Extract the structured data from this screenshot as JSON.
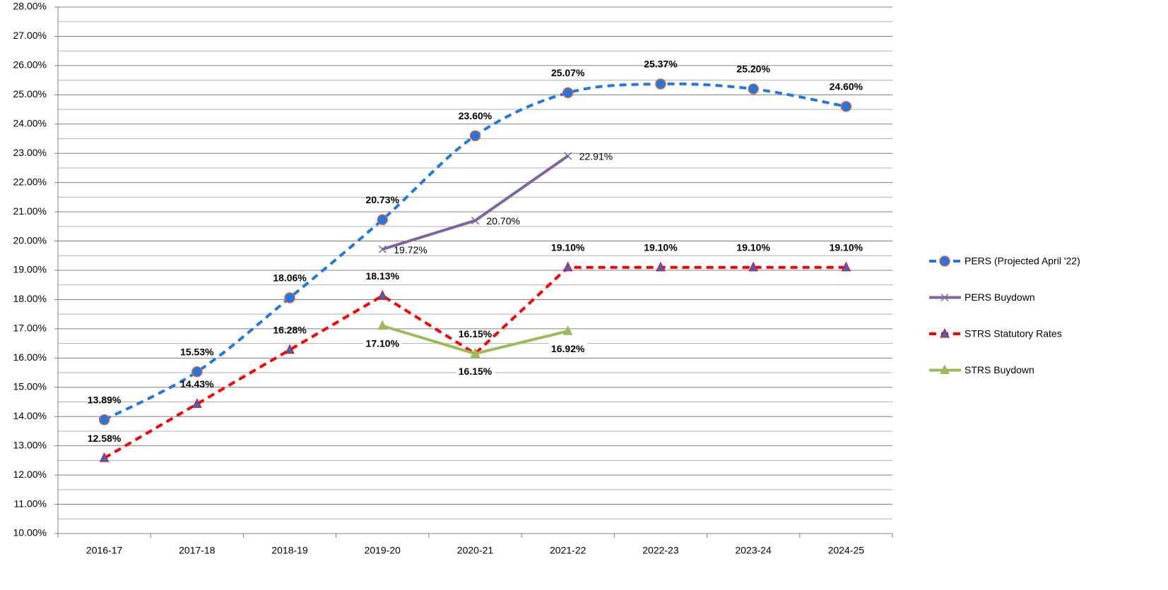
{
  "chart_data": {
    "type": "line",
    "categories": [
      "2016-17",
      "2017-18",
      "2018-19",
      "2019-20",
      "2020-21",
      "2021-22",
      "2022-23",
      "2023-24",
      "2024-25"
    ],
    "ylim": [
      10,
      28
    ],
    "yticks": [
      {
        "value": 10,
        "label": "10.00%"
      },
      {
        "value": 11,
        "label": "11.00%"
      },
      {
        "value": 12,
        "label": "12.00%"
      },
      {
        "value": 13,
        "label": "13.00%"
      },
      {
        "value": 14,
        "label": "14.00%"
      },
      {
        "value": 15,
        "label": "15.00%"
      },
      {
        "value": 16,
        "label": "16.00%"
      },
      {
        "value": 17,
        "label": "17.00%"
      },
      {
        "value": 18,
        "label": "18.00%"
      },
      {
        "value": 19,
        "label": "19.00%"
      },
      {
        "value": 20,
        "label": "20.00%"
      },
      {
        "value": 21,
        "label": "21.00%"
      },
      {
        "value": 22,
        "label": "22.00%"
      },
      {
        "value": 23,
        "label": "23.00%"
      },
      {
        "value": 24,
        "label": "24.00%"
      },
      {
        "value": 25,
        "label": "25.00%"
      },
      {
        "value": 26,
        "label": "26.00%"
      },
      {
        "value": 27,
        "label": "27.00%"
      },
      {
        "value": 28,
        "label": "28.00%"
      }
    ],
    "minor_yticks": [
      10.5,
      11.5,
      12.5,
      13.5,
      14.5,
      15.5,
      16.5,
      17.5,
      18.5,
      19.5,
      20.5,
      21.5,
      22.5,
      23.5,
      24.5,
      25.5,
      26.5,
      27.5
    ],
    "grid": true,
    "legend": "right",
    "series": [
      {
        "name": "PERS (Projected April '22)",
        "color": "#1f77e8",
        "dashed": true,
        "smooth": true,
        "marker": "circle",
        "marker_color": "#1f77e8",
        "marker_stroke": "#e8602c",
        "label_position": "above",
        "label_bold": true,
        "values": [
          13.89,
          15.53,
          18.06,
          20.73,
          23.6,
          25.07,
          25.37,
          25.2,
          24.6
        ],
        "value_labels": [
          "13.89%",
          "15.53%",
          "18.06%",
          "20.73%",
          "23.60%",
          "25.07%",
          "25.37%",
          "25.20%",
          "24.60%"
        ]
      },
      {
        "name": "PERS Buydown",
        "color": "#8064a2",
        "dashed": false,
        "smooth": false,
        "marker": "x",
        "marker_color": "#8064a2",
        "marker_stroke": "#8064a2",
        "label_position": "right",
        "label_bold": false,
        "values": [
          null,
          null,
          null,
          19.72,
          20.7,
          22.91,
          null,
          null,
          null
        ],
        "value_labels": [
          null,
          null,
          null,
          "19.72%",
          "20.70%",
          "22.91%",
          null,
          null,
          null
        ]
      },
      {
        "name": "STRS Statutory Rates",
        "color": "#ff0000",
        "dashed": true,
        "smooth": false,
        "marker": "triangle",
        "marker_color": "#3a66c4",
        "marker_stroke": "#ff0000",
        "label_position": "above",
        "label_bold": true,
        "values": [
          12.58,
          14.43,
          16.28,
          18.13,
          16.15,
          19.1,
          19.1,
          19.1,
          19.1
        ],
        "value_labels": [
          "12.58%",
          "14.43%",
          "16.28%",
          "18.13%",
          "16.15%",
          "19.10%",
          "19.10%",
          "19.10%",
          "19.10%"
        ]
      },
      {
        "name": "STRS Buydown",
        "color": "#9bbb59",
        "dashed": false,
        "smooth": false,
        "marker": "triangle",
        "marker_color": "#9bbb59",
        "marker_stroke": "#9bbb59",
        "label_position": "below",
        "label_bold": true,
        "label_color": "#6b8e23",
        "values": [
          null,
          null,
          null,
          17.1,
          16.15,
          16.92,
          null,
          null,
          null
        ],
        "value_labels": [
          null,
          null,
          null,
          "17.10%",
          "16.15%",
          "16.92%",
          null,
          null,
          null
        ]
      }
    ]
  }
}
